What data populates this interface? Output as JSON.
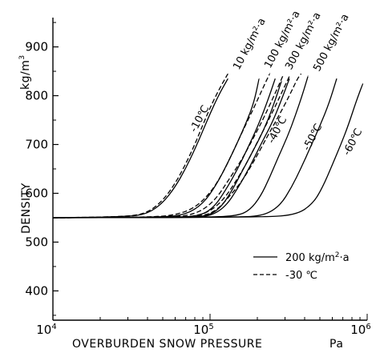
{
  "chart_data": {
    "type": "line",
    "xscale": "log",
    "xlabel": "OVERBURDEN  SNOW  PRESSURE",
    "xunit": "Pa",
    "xlim": [
      10000,
      1000000
    ],
    "x_ticks": [
      {
        "value": 10000,
        "base": "10",
        "exp": "4"
      },
      {
        "value": 100000,
        "base": "10",
        "exp": "5"
      },
      {
        "value": 1000000,
        "base": "10",
        "exp": "6"
      }
    ],
    "ylabel": "DENSITY",
    "yunit": "kg/m",
    "yunit_exp": "3",
    "ylim": [
      340,
      960
    ],
    "y_ticks": [
      400,
      500,
      600,
      700,
      800,
      900
    ],
    "grid": false,
    "legend": {
      "position": "bottom-right",
      "entries": [
        {
          "text": "200 kg/m",
          "sup": "2",
          "suffix": "·a",
          "style": "solid"
        },
        {
          "text": "-30 ℃",
          "style": "dashed"
        }
      ]
    },
    "series": [
      {
        "label": "10 kg/m²·a",
        "style": "dashed",
        "x": [
          10000,
          30000,
          40000,
          50000,
          60000,
          70000,
          80000,
          90000,
          100000,
          115000,
          130000
        ],
        "y": [
          550,
          552,
          560,
          585,
          620,
          660,
          700,
          740,
          775,
          815,
          845
        ]
      },
      {
        "label": "",
        "style": "dashed",
        "x": [
          10000,
          40000,
          60000,
          80000,
          100000,
          120000,
          140000,
          160000,
          190000,
          220000,
          240000
        ],
        "y": [
          550,
          551,
          555,
          570,
          600,
          640,
          685,
          725,
          775,
          820,
          845
        ]
      },
      {
        "label": "100 kg/m²·a",
        "style": "dashed",
        "x": [
          10000,
          50000,
          70000,
          90000,
          110000,
          130000,
          160000,
          190000,
          220000,
          260000,
          290000
        ],
        "y": [
          550,
          551,
          553,
          565,
          590,
          625,
          670,
          715,
          755,
          805,
          840
        ]
      },
      {
        "label": "300 kg/m²·a",
        "style": "dashed",
        "x": [
          10000,
          60000,
          80000,
          100000,
          120000,
          140000,
          170000,
          200000,
          240000,
          280000,
          320000
        ],
        "y": [
          550,
          551,
          553,
          563,
          585,
          615,
          660,
          705,
          755,
          800,
          840
        ]
      },
      {
        "label": "500 kg/m²·a",
        "style": "dashed",
        "x": [
          10000,
          60000,
          90000,
          110000,
          130000,
          160000,
          190000,
          230000,
          270000,
          320000,
          360000,
          380000
        ],
        "y": [
          550,
          551,
          553,
          565,
          590,
          625,
          665,
          715,
          755,
          800,
          835,
          845
        ]
      },
      {
        "label": "",
        "style": "solid",
        "x": [
          10000,
          30000,
          40000,
          50000,
          60000,
          70000,
          80000,
          90000,
          100000,
          115000,
          130000
        ],
        "y": [
          550,
          552,
          558,
          580,
          613,
          651,
          690,
          728,
          763,
          805,
          835
        ]
      },
      {
        "label": "-10℃",
        "style": "solid",
        "x": [
          10000,
          50000,
          70000,
          90000,
          110000,
          130000,
          150000,
          170000,
          190000,
          205000
        ],
        "y": [
          550,
          551,
          556,
          578,
          618,
          663,
          705,
          745,
          785,
          835
        ]
      },
      {
        "label": "",
        "style": "solid",
        "x": [
          10000,
          60000,
          85000,
          105000,
          125000,
          150000,
          175000,
          200000,
          230000,
          260000
        ],
        "y": [
          550,
          551,
          553,
          570,
          605,
          650,
          695,
          735,
          785,
          835
        ]
      },
      {
        "label": "",
        "style": "solid",
        "x": [
          10000,
          70000,
          95000,
          115000,
          135000,
          160000,
          190000,
          220000,
          250000,
          285000
        ],
        "y": [
          550,
          551,
          553,
          568,
          600,
          645,
          690,
          730,
          775,
          830
        ]
      },
      {
        "label": "",
        "style": "solid",
        "x": [
          10000,
          75000,
          100000,
          125000,
          150000,
          180000,
          210000,
          245000,
          280000,
          320000
        ],
        "y": [
          550,
          551,
          553,
          572,
          610,
          655,
          700,
          740,
          785,
          835
        ]
      },
      {
        "label": "-40℃",
        "style": "solid",
        "x": [
          10000,
          100000,
          150000,
          180000,
          210000,
          240000,
          270000,
          310000,
          350000,
          390000,
          420000
        ],
        "y": [
          550,
          551,
          554,
          566,
          594,
          633,
          672,
          715,
          760,
          805,
          840
        ]
      },
      {
        "label": "-50℃",
        "style": "solid",
        "x": [
          10000,
          150000,
          220000,
          280000,
          330000,
          380000,
          440000,
          500000,
          570000,
          640000
        ],
        "y": [
          550,
          551,
          554,
          575,
          612,
          652,
          698,
          738,
          783,
          835
        ]
      },
      {
        "label": "-60℃",
        "style": "solid",
        "x": [
          10000,
          200000,
          350000,
          450000,
          520000,
          600000,
          680000,
          760000,
          850000,
          940000
        ],
        "y": [
          550,
          551,
          555,
          578,
          612,
          658,
          700,
          740,
          788,
          825
        ]
      }
    ]
  }
}
